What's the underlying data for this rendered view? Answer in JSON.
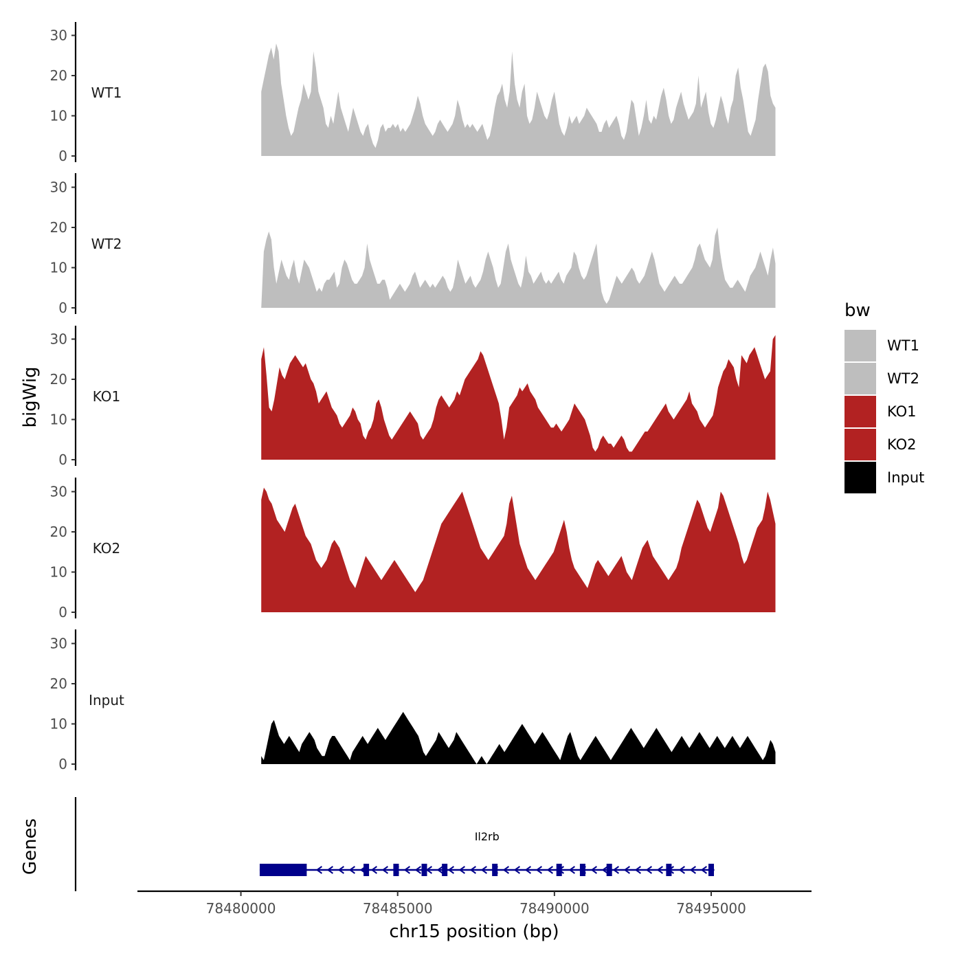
{
  "chart_data": {
    "type": "area",
    "ylabel": "bigWig",
    "xlabel": "chr15 position (bp)",
    "xlim": [
      78476700,
      78498200
    ],
    "ylim": [
      0,
      33
    ],
    "yticks": [
      0,
      10,
      20,
      30
    ],
    "xticks": [
      78480000,
      78485000,
      78490000,
      78495000
    ],
    "x_start": 78480650,
    "x_end": 78497050,
    "series": [
      {
        "name": "WT1",
        "color": "#BEBEBE",
        "values": [
          16,
          19,
          22,
          25,
          27,
          24,
          28,
          26,
          18,
          14,
          10,
          7,
          5,
          6,
          9,
          12,
          14,
          18,
          16,
          14,
          16,
          26,
          22,
          16,
          14,
          12,
          8,
          7,
          10,
          8,
          12,
          16,
          12,
          10,
          8,
          6,
          9,
          12,
          10,
          8,
          6,
          5,
          7,
          8,
          5,
          3,
          2,
          4,
          7,
          8,
          6,
          7,
          7,
          8,
          7,
          8,
          6,
          7,
          6,
          7,
          8,
          10,
          12,
          15,
          13,
          10,
          8,
          7,
          6,
          5,
          6,
          8,
          9,
          8,
          7,
          6,
          7,
          8,
          10,
          14,
          12,
          9,
          7,
          8,
          7,
          8,
          7,
          6,
          7,
          8,
          6,
          4,
          5,
          8,
          12,
          15,
          16,
          18,
          14,
          12,
          16,
          26,
          18,
          14,
          12,
          16,
          18,
          10,
          8,
          9,
          12,
          16,
          14,
          12,
          10,
          9,
          11,
          14,
          16,
          12,
          8,
          6,
          5,
          7,
          10,
          8,
          9,
          10,
          8,
          9,
          10,
          12,
          11,
          10,
          9,
          8,
          6,
          6,
          8,
          9,
          7,
          8,
          9,
          10,
          8,
          5,
          4,
          6,
          10,
          14,
          13,
          9,
          5,
          7,
          10,
          14,
          9,
          8,
          10,
          9,
          12,
          15,
          17,
          14,
          10,
          8,
          9,
          12,
          14,
          16,
          13,
          11,
          9,
          10,
          11,
          13,
          20,
          12,
          14,
          16,
          11,
          8,
          7,
          9,
          12,
          15,
          13,
          10,
          8,
          12,
          14,
          20,
          22,
          17,
          14,
          10,
          6,
          5,
          7,
          9,
          14,
          18,
          22,
          23,
          21,
          15,
          13,
          12
        ]
      },
      {
        "name": "WT2",
        "color": "#BEBEBE",
        "values": [
          0,
          14,
          17,
          19,
          17,
          10,
          6,
          9,
          12,
          10,
          8,
          7,
          10,
          12,
          8,
          6,
          9,
          12,
          11,
          10,
          8,
          6,
          4,
          5,
          4,
          6,
          7,
          7,
          8,
          9,
          5,
          6,
          10,
          12,
          11,
          9,
          7,
          6,
          6,
          7,
          8,
          10,
          16,
          12,
          10,
          8,
          6,
          6,
          7,
          7,
          5,
          2,
          3,
          4,
          5,
          6,
          5,
          4,
          5,
          6,
          8,
          9,
          7,
          5,
          6,
          7,
          6,
          5,
          6,
          5,
          6,
          7,
          8,
          7,
          5,
          4,
          5,
          8,
          12,
          10,
          8,
          6,
          7,
          8,
          6,
          5,
          6,
          7,
          9,
          12,
          14,
          12,
          10,
          7,
          5,
          6,
          10,
          14,
          16,
          12,
          10,
          8,
          6,
          5,
          8,
          13,
          9,
          8,
          6,
          7,
          8,
          9,
          7,
          6,
          7,
          6,
          7,
          8,
          9,
          7,
          6,
          8,
          9,
          10,
          14,
          13,
          10,
          8,
          7,
          8,
          10,
          12,
          14,
          16,
          9,
          4,
          2,
          1,
          2,
          4,
          6,
          8,
          7,
          6,
          7,
          8,
          9,
          10,
          9,
          7,
          6,
          7,
          8,
          10,
          12,
          14,
          12,
          9,
          6,
          5,
          4,
          5,
          6,
          7,
          8,
          7,
          6,
          6,
          7,
          8,
          9,
          10,
          12,
          15,
          16,
          14,
          12,
          11,
          10,
          12,
          18,
          20,
          14,
          10,
          7,
          6,
          5,
          5,
          6,
          7,
          6,
          5,
          4,
          6,
          8,
          9,
          10,
          12,
          14,
          12,
          10,
          8,
          12,
          15,
          11
        ]
      },
      {
        "name": "KO1",
        "color": "#B22222",
        "values": [
          25,
          28,
          21,
          13,
          12,
          15,
          19,
          23,
          21,
          20,
          22,
          24,
          25,
          26,
          25,
          24,
          23,
          24,
          22,
          20,
          19,
          17,
          14,
          15,
          16,
          17,
          15,
          13,
          12,
          11,
          9,
          8,
          9,
          10,
          11,
          13,
          12,
          10,
          9,
          6,
          5,
          7,
          8,
          10,
          14,
          15,
          13,
          10,
          8,
          6,
          5,
          6,
          7,
          8,
          9,
          10,
          11,
          12,
          11,
          10,
          9,
          6,
          5,
          6,
          7,
          8,
          10,
          13,
          15,
          16,
          15,
          14,
          13,
          14,
          15,
          17,
          16,
          18,
          20,
          21,
          22,
          23,
          24,
          25,
          27,
          26,
          24,
          22,
          20,
          18,
          16,
          14,
          10,
          5,
          8,
          13,
          14,
          15,
          16,
          18,
          17,
          18,
          19,
          17,
          16,
          15,
          13,
          12,
          11,
          10,
          9,
          8,
          8,
          9,
          8,
          7,
          8,
          9,
          10,
          12,
          14,
          13,
          12,
          11,
          10,
          8,
          6,
          3,
          2,
          3,
          5,
          6,
          5,
          4,
          4,
          3,
          4,
          5,
          6,
          5,
          3,
          2,
          2,
          3,
          4,
          5,
          6,
          7,
          7,
          8,
          9,
          10,
          11,
          12,
          13,
          14,
          12,
          11,
          10,
          11,
          12,
          13,
          14,
          15,
          17,
          14,
          13,
          12,
          10,
          9,
          8,
          9,
          10,
          11,
          14,
          18,
          20,
          22,
          23,
          25,
          24,
          23,
          20,
          18,
          26,
          25,
          24,
          26,
          27,
          28,
          26,
          24,
          22,
          20,
          21,
          22,
          30,
          31
        ]
      },
      {
        "name": "KO2",
        "color": "#B22222",
        "values": [
          28,
          31,
          30,
          28,
          27,
          25,
          23,
          22,
          21,
          20,
          22,
          24,
          26,
          27,
          25,
          23,
          21,
          19,
          18,
          17,
          15,
          13,
          12,
          11,
          12,
          13,
          15,
          17,
          18,
          17,
          16,
          14,
          12,
          10,
          8,
          7,
          6,
          8,
          10,
          12,
          14,
          13,
          12,
          11,
          10,
          9,
          8,
          9,
          10,
          11,
          12,
          13,
          12,
          11,
          10,
          9,
          8,
          7,
          6,
          5,
          6,
          7,
          8,
          10,
          12,
          14,
          16,
          18,
          20,
          22,
          23,
          24,
          25,
          26,
          27,
          28,
          29,
          30,
          28,
          26,
          24,
          22,
          20,
          18,
          16,
          15,
          14,
          13,
          14,
          15,
          16,
          17,
          18,
          19,
          22,
          27,
          29,
          25,
          21,
          17,
          15,
          13,
          11,
          10,
          9,
          8,
          9,
          10,
          11,
          12,
          13,
          14,
          15,
          17,
          19,
          21,
          23,
          20,
          16,
          13,
          11,
          10,
          9,
          8,
          7,
          6,
          8,
          10,
          12,
          13,
          12,
          11,
          10,
          9,
          10,
          11,
          12,
          13,
          14,
          12,
          10,
          9,
          8,
          10,
          12,
          14,
          16,
          17,
          18,
          16,
          14,
          13,
          12,
          11,
          10,
          9,
          8,
          9,
          10,
          11,
          13,
          16,
          18,
          20,
          22,
          24,
          26,
          28,
          27,
          25,
          23,
          21,
          20,
          22,
          24,
          26,
          30,
          29,
          27,
          25,
          23,
          21,
          19,
          17,
          14,
          12,
          13,
          15,
          17,
          19,
          21,
          22,
          23,
          26,
          30,
          28,
          25,
          22
        ]
      },
      {
        "name": "Input",
        "color": "#000000",
        "values": [
          2,
          1,
          4,
          7,
          10,
          11,
          9,
          7,
          6,
          5,
          6,
          7,
          6,
          5,
          4,
          3,
          5,
          6,
          7,
          8,
          7,
          6,
          4,
          3,
          2,
          2,
          4,
          6,
          7,
          7,
          6,
          5,
          4,
          3,
          2,
          1,
          3,
          4,
          5,
          6,
          7,
          6,
          5,
          6,
          7,
          8,
          9,
          8,
          7,
          6,
          7,
          8,
          9,
          10,
          11,
          12,
          13,
          12,
          11,
          10,
          9,
          8,
          7,
          5,
          3,
          2,
          3,
          4,
          5,
          6,
          8,
          7,
          6,
          5,
          4,
          5,
          6,
          8,
          7,
          6,
          5,
          4,
          3,
          2,
          1,
          0,
          1,
          2,
          1,
          0,
          1,
          2,
          3,
          4,
          5,
          4,
          3,
          4,
          5,
          6,
          7,
          8,
          9,
          10,
          9,
          8,
          7,
          6,
          5,
          6,
          7,
          8,
          7,
          6,
          5,
          4,
          3,
          2,
          1,
          3,
          5,
          7,
          8,
          6,
          4,
          2,
          1,
          2,
          3,
          4,
          5,
          6,
          7,
          6,
          5,
          4,
          3,
          2,
          1,
          2,
          3,
          4,
          5,
          6,
          7,
          8,
          9,
          8,
          7,
          6,
          5,
          4,
          5,
          6,
          7,
          8,
          9,
          8,
          7,
          6,
          5,
          4,
          3,
          4,
          5,
          6,
          7,
          6,
          5,
          4,
          5,
          6,
          7,
          8,
          7,
          6,
          5,
          4,
          5,
          6,
          7,
          6,
          5,
          4,
          5,
          6,
          7,
          6,
          5,
          4,
          5,
          6,
          7,
          6,
          5,
          4,
          3,
          2,
          1,
          2,
          4,
          6,
          5,
          3
        ]
      }
    ],
    "track_labels": [
      "WT1",
      "WT2",
      "KO1",
      "KO2",
      "Input"
    ],
    "legend": {
      "title": "bw",
      "position": "right",
      "entries": [
        "WT1",
        "WT2",
        "KO1",
        "KO2",
        "Input"
      ]
    },
    "genes": {
      "title": "Genes",
      "color": "#00008B",
      "name": "Il2rb",
      "start": 78480600,
      "end": 78495100,
      "thick_start": 78480600,
      "thick_end": 78482100,
      "exons": [
        78481350,
        78484000,
        78484950,
        78485850,
        78486500,
        78488100,
        78490150,
        78490900,
        78491750,
        78493650,
        78495000
      ]
    }
  }
}
